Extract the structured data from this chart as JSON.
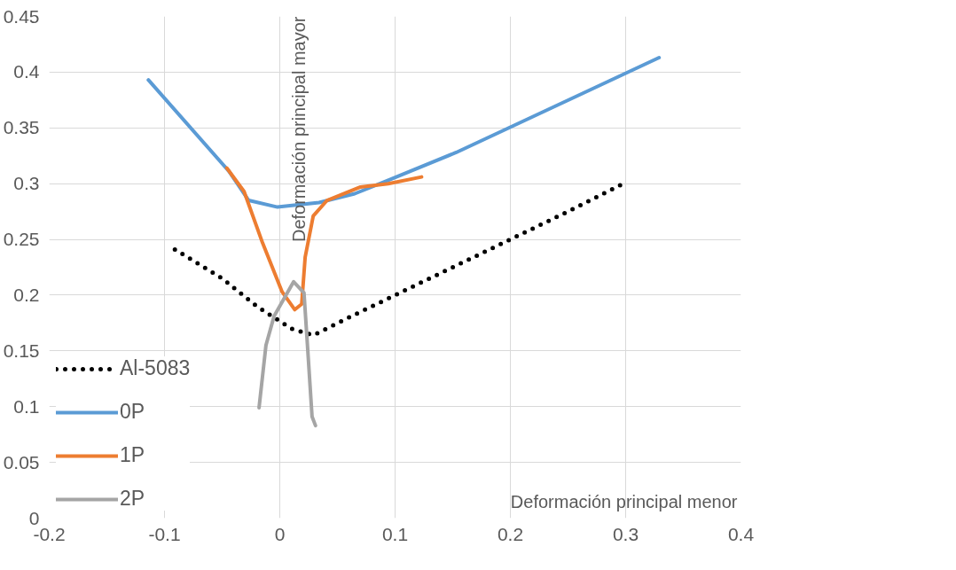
{
  "chart_data": {
    "type": "line",
    "xlabel": "Deformación principal menor",
    "ylabel": "Deformación principal mayor",
    "xlim": [
      -0.2,
      0.4
    ],
    "xticks": [
      -0.2,
      -0.1,
      0,
      0.1,
      0.2,
      0.3,
      0.4
    ],
    "ylim": [
      0,
      0.45
    ],
    "yticks": [
      0,
      0.05,
      0.1,
      0.15,
      0.2,
      0.25,
      0.3,
      0.35,
      0.4,
      0.45
    ],
    "grid": true,
    "legend": "bottom left",
    "series": [
      {
        "name": "Al-5083",
        "color": "#000000",
        "line_style": "dotted",
        "x": [
          -0.091,
          -0.05,
          -0.02,
          0.01,
          0.029,
          0.06,
          0.1,
          0.15,
          0.2,
          0.25,
          0.298
        ],
        "values": [
          0.241,
          0.215,
          0.19,
          0.17,
          0.164,
          0.18,
          0.2,
          0.225,
          0.25,
          0.275,
          0.3
        ]
      },
      {
        "name": "0P",
        "color": "#5b9bd5",
        "line_style": "solid",
        "x": [
          -0.114,
          -0.044,
          -0.027,
          -0.002,
          0.034,
          0.065,
          0.094,
          0.153,
          0.211,
          0.269,
          0.329
        ],
        "values": [
          0.393,
          0.311,
          0.285,
          0.279,
          0.283,
          0.291,
          0.303,
          0.328,
          0.356,
          0.384,
          0.413
        ]
      },
      {
        "name": "1P",
        "color": "#ed7d31",
        "line_style": "solid",
        "x": [
          -0.046,
          -0.031,
          -0.015,
          0.002,
          0.013,
          0.019,
          0.022,
          0.029,
          0.041,
          0.07,
          0.094,
          0.123
        ],
        "values": [
          0.314,
          0.293,
          0.247,
          0.203,
          0.187,
          0.192,
          0.234,
          0.271,
          0.285,
          0.297,
          0.3,
          0.306
        ]
      },
      {
        "name": "2P",
        "color": "#a5a5a5",
        "line_style": "solid",
        "x": [
          -0.018,
          -0.012,
          -0.005,
          0.012,
          0.021,
          0.024,
          0.028,
          0.031
        ],
        "values": [
          0.099,
          0.155,
          0.181,
          0.212,
          0.202,
          0.155,
          0.091,
          0.083
        ]
      }
    ]
  }
}
